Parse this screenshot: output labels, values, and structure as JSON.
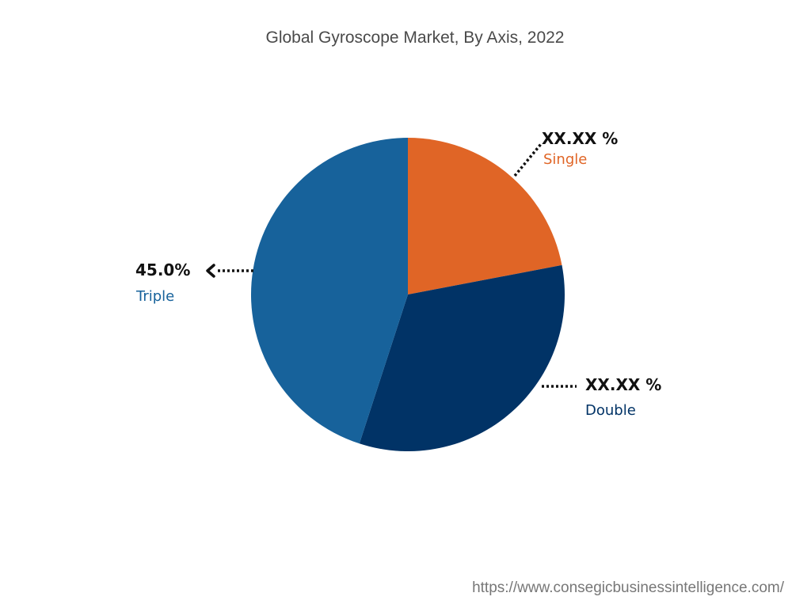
{
  "chart_data": {
    "type": "pie",
    "title": "Global Gyroscope Market, By Axis, 2022",
    "slices": [
      {
        "label": "Single",
        "value_label": "XX.XX %",
        "value": 22.0,
        "color": "#e06526"
      },
      {
        "label": "Double",
        "value_label": "XX.XX %",
        "value": 33.0,
        "color": "#013366"
      },
      {
        "label": "Triple",
        "value_label": "45.0%",
        "value": 45.0,
        "color": "#17629b"
      }
    ],
    "start": "12 o'clock",
    "direction": "clockwise"
  },
  "source_text": "https://www.consegicbusinessintelligence.com/"
}
